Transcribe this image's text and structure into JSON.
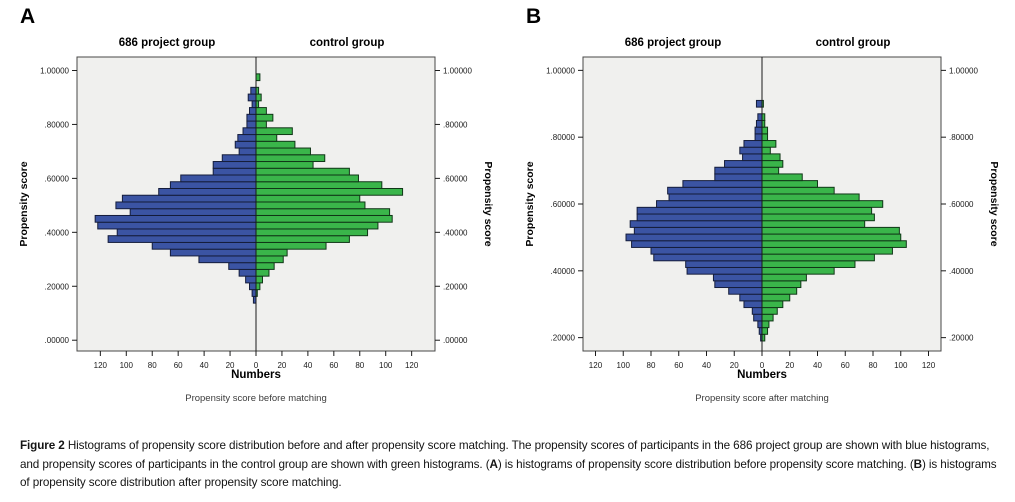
{
  "figure": {
    "background": "#ffffff"
  },
  "caption": {
    "segments": [
      {
        "bold": true,
        "text": "Figure 2 "
      },
      {
        "bold": false,
        "text": "Histograms of propensity score distribution before and after propensity score matching. The propensity scores of participants in the 686 project group are shown with blue histograms, and propensity scores of participants in the control group are shown with green histograms. ("
      },
      {
        "bold": true,
        "text": "A"
      },
      {
        "bold": false,
        "text": ") is histograms of propensity score distribution before propensity score matching. ("
      },
      {
        "bold": true,
        "text": "B"
      },
      {
        "bold": false,
        "text": ") is histograms of propensity score distribution after propensity score matching."
      }
    ]
  },
  "chart_data": {
    "type": "bar",
    "variant": "back-to-back horizontal histograms (population-pyramid style, SPSS)",
    "panels": [
      {
        "letter": "A",
        "left_group_title": "686 project group",
        "right_group_title": "control group",
        "y_axis_label_left": "Propensity score",
        "y_axis_label_right": "Propensity score",
        "x_axis_label": "Numbers",
        "subtitle": "Propensity score before matching",
        "plot_bg": "#f0f0ee",
        "plot_border": "#474747",
        "bin_width": 0.025,
        "y_range": [
          -0.04,
          1.05
        ],
        "x_limit": 138,
        "y_ticks": [
          {
            "value": 1.0,
            "label": "1.00000"
          },
          {
            "value": 0.8,
            "label": ".80000"
          },
          {
            "value": 0.6,
            "label": ".60000"
          },
          {
            "value": 0.4,
            "label": ".40000"
          },
          {
            "value": 0.2,
            "label": ".20000"
          },
          {
            "value": 0.0,
            "label": ".00000"
          }
        ],
        "x_ticks": [
          {
            "v": -120,
            "label": "120"
          },
          {
            "v": -100,
            "label": "100"
          },
          {
            "v": -80,
            "label": "80"
          },
          {
            "v": -60,
            "label": "60"
          },
          {
            "v": -40,
            "label": "40"
          },
          {
            "v": -20,
            "label": "20"
          },
          {
            "v": 0,
            "label": "0"
          },
          {
            "v": 20,
            "label": "20"
          },
          {
            "v": 40,
            "label": "40"
          },
          {
            "v": 60,
            "label": "60"
          },
          {
            "v": 80,
            "label": "80"
          },
          {
            "v": 100,
            "label": "100"
          },
          {
            "v": 120,
            "label": "120"
          }
        ],
        "bin_centers": [
          0.15,
          0.175,
          0.2,
          0.225,
          0.25,
          0.275,
          0.3,
          0.325,
          0.35,
          0.375,
          0.4,
          0.425,
          0.45,
          0.475,
          0.5,
          0.525,
          0.55,
          0.575,
          0.6,
          0.625,
          0.65,
          0.675,
          0.7,
          0.725,
          0.75,
          0.775,
          0.8,
          0.825,
          0.85,
          0.875,
          0.9,
          0.925,
          0.95,
          0.975
        ],
        "series": [
          {
            "name": "686 project group",
            "side": "left",
            "color": "#3b54a3",
            "stroke": "#151d3b",
            "values": [
              2,
              3,
              5,
              8,
              13,
              21,
              44,
              66,
              80,
              114,
              107,
              122,
              124,
              97,
              108,
              103,
              75,
              66,
              58,
              33,
              33,
              26,
              13,
              16,
              14,
              10,
              7,
              7,
              5,
              3,
              6,
              4,
              0,
              0
            ]
          },
          {
            "name": "control group",
            "side": "right",
            "color": "#3ab54a",
            "stroke": "#103617",
            "values": [
              0,
              1,
              3,
              5,
              10,
              14,
              21,
              24,
              54,
              72,
              86,
              94,
              105,
              103,
              84,
              80,
              113,
              97,
              79,
              72,
              44,
              53,
              42,
              30,
              16,
              28,
              8,
              13,
              8,
              2,
              4,
              2,
              0,
              3
            ]
          }
        ]
      },
      {
        "letter": "B",
        "left_group_title": "686 project group",
        "right_group_title": "control group",
        "y_axis_label_left": "Propensity score",
        "y_axis_label_right": "Propensity score",
        "x_axis_label": "Numbers",
        "subtitle": "Propensity score after matching",
        "plot_bg": "#f0f0ee",
        "plot_border": "#474747",
        "bin_width": 0.02,
        "y_range": [
          0.16,
          1.04
        ],
        "x_limit": 129,
        "y_ticks": [
          {
            "value": 1.0,
            "label": "1.00000"
          },
          {
            "value": 0.8,
            "label": ".80000"
          },
          {
            "value": 0.6,
            "label": ".60000"
          },
          {
            "value": 0.4,
            "label": ".40000"
          },
          {
            "value": 0.2,
            "label": ".20000"
          }
        ],
        "x_ticks": [
          {
            "v": -120,
            "label": "120"
          },
          {
            "v": -100,
            "label": "100"
          },
          {
            "v": -80,
            "label": "80"
          },
          {
            "v": -60,
            "label": "60"
          },
          {
            "v": -40,
            "label": "40"
          },
          {
            "v": -20,
            "label": "20"
          },
          {
            "v": 0,
            "label": "0"
          },
          {
            "v": 20,
            "label": "20"
          },
          {
            "v": 40,
            "label": "40"
          },
          {
            "v": 60,
            "label": "60"
          },
          {
            "v": 80,
            "label": "80"
          },
          {
            "v": 100,
            "label": "100"
          },
          {
            "v": 120,
            "label": "120"
          }
        ],
        "bin_centers": [
          0.2,
          0.22,
          0.24,
          0.26,
          0.28,
          0.3,
          0.32,
          0.34,
          0.36,
          0.38,
          0.4,
          0.42,
          0.44,
          0.46,
          0.48,
          0.5,
          0.52,
          0.54,
          0.56,
          0.58,
          0.6,
          0.62,
          0.64,
          0.66,
          0.68,
          0.7,
          0.72,
          0.74,
          0.76,
          0.78,
          0.8,
          0.82,
          0.84,
          0.86,
          0.88,
          0.9
        ],
        "series": [
          {
            "name": "686 project group",
            "side": "left",
            "color": "#3b54a3",
            "stroke": "#151d3b",
            "values": [
              1,
              2,
              3,
              6,
              7,
              13,
              16,
              24,
              34,
              35,
              54,
              55,
              78,
              80,
              94,
              98,
              92,
              95,
              90,
              90,
              76,
              67,
              68,
              57,
              34,
              34,
              27,
              14,
              16,
              13,
              5,
              5,
              4,
              3,
              0,
              4
            ]
          },
          {
            "name": "control group",
            "side": "right",
            "color": "#3ab54a",
            "stroke": "#103617",
            "values": [
              2,
              4,
              5,
              8,
              11,
              15,
              20,
              25,
              28,
              32,
              52,
              67,
              81,
              94,
              104,
              100,
              99,
              74,
              81,
              79,
              87,
              70,
              52,
              40,
              29,
              12,
              15,
              13,
              6,
              10,
              4,
              4,
              2,
              2,
              0,
              1
            ]
          }
        ]
      }
    ]
  }
}
